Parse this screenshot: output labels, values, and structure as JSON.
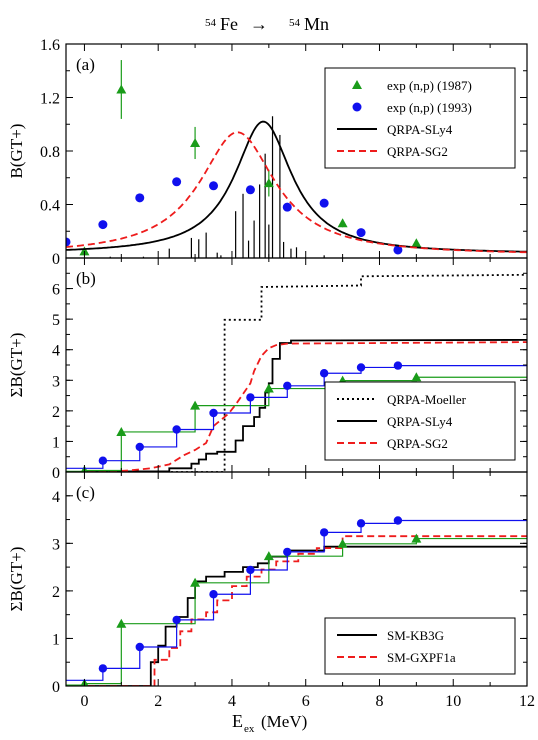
{
  "figure": {
    "title_mass_left": "54",
    "title_elem_left": "Fe",
    "title_arrow": "→",
    "title_mass_right": "54",
    "title_elem_right": "Mn",
    "xlabel_main": "E",
    "xlabel_sub": "ex",
    "xlabel_unit": "(MeV)"
  },
  "colors": {
    "exp87": "#1a9c1a",
    "exp93": "#1010ee",
    "sly4": "#000000",
    "sg2": "#ee1c1c",
    "moeller": "#000000",
    "kb3g": "#000000",
    "gxpf1a": "#ee1c1c"
  },
  "chart_data": [
    {
      "type": "scatter",
      "panel_label": "(a)",
      "ylabel": "B(GT+)",
      "xlim": [
        -0.5,
        12
      ],
      "ylim": [
        0,
        1.6
      ],
      "xticks": [
        0,
        2,
        4,
        6,
        8,
        10,
        12
      ],
      "yticks": [
        "0",
        "0.4",
        "0.8",
        "1.2",
        "1.6"
      ],
      "legend_position": "top-right",
      "series": [
        {
          "name": "exp (n,p)  (1987)",
          "marker": "triangle",
          "color": "#1a9c1a",
          "points": [
            {
              "x": 0,
              "y": 0.05,
              "err": 0.02
            },
            {
              "x": 1,
              "y": 1.26,
              "err": 0.22
            },
            {
              "x": 3,
              "y": 0.86,
              "err": 0.12
            },
            {
              "x": 5,
              "y": 0.56,
              "err": 0.1
            },
            {
              "x": 7,
              "y": 0.26,
              "err": 0.03
            },
            {
              "x": 9,
              "y": 0.11,
              "err": 0.0
            }
          ]
        },
        {
          "name": "exp (n,p)  (1993)",
          "marker": "circle",
          "color": "#1010ee",
          "points": [
            {
              "x": -0.5,
              "y": 0.12
            },
            {
              "x": 0.5,
              "y": 0.25
            },
            {
              "x": 1.5,
              "y": 0.45
            },
            {
              "x": 2.5,
              "y": 0.57
            },
            {
              "x": 3.5,
              "y": 0.54
            },
            {
              "x": 4.5,
              "y": 0.51
            },
            {
              "x": 5.5,
              "y": 0.38
            },
            {
              "x": 6.5,
              "y": 0.41
            },
            {
              "x": 7.5,
              "y": 0.19
            },
            {
              "x": 8.5,
              "y": 0.06
            }
          ]
        },
        {
          "name": "QRPA-SLy4",
          "style": "solid",
          "color": "#000000",
          "shape": "lorentz",
          "center": 4.85,
          "peak": 1.02,
          "width": 0.95,
          "base": 0.03
        },
        {
          "name": "QRPA-SG2",
          "style": "dashed",
          "color": "#ee1c1c",
          "shape": "lorentz",
          "center": 4.15,
          "peak": 0.94,
          "width": 1.25,
          "base": 0.02
        }
      ],
      "sticks": [
        {
          "x": 0.7,
          "y": 0.01
        },
        {
          "x": 1.6,
          "y": 0.01
        },
        {
          "x": 2.3,
          "y": 0.07
        },
        {
          "x": 2.9,
          "y": 0.15
        },
        {
          "x": 3.1,
          "y": 0.14
        },
        {
          "x": 3.3,
          "y": 0.19
        },
        {
          "x": 3.6,
          "y": 0.04
        },
        {
          "x": 3.7,
          "y": 0.02
        },
        {
          "x": 4.1,
          "y": 0.35
        },
        {
          "x": 4.3,
          "y": 0.48
        },
        {
          "x": 4.45,
          "y": 0.13
        },
        {
          "x": 4.6,
          "y": 0.28
        },
        {
          "x": 4.75,
          "y": 0.55
        },
        {
          "x": 4.9,
          "y": 0.78
        },
        {
          "x": 5.0,
          "y": 0.25
        },
        {
          "x": 5.1,
          "y": 1.06
        },
        {
          "x": 5.3,
          "y": 0.92
        },
        {
          "x": 5.4,
          "y": 0.12
        },
        {
          "x": 5.6,
          "y": 0.07
        },
        {
          "x": 5.75,
          "y": 0.08
        },
        {
          "x": 6.5,
          "y": 0.02
        }
      ]
    },
    {
      "type": "line",
      "panel_label": "(b)",
      "ylabel": "ΣB(GT+)",
      "xlim": [
        -0.5,
        12
      ],
      "ylim": [
        0,
        7
      ],
      "xticks": [
        0,
        2,
        4,
        6,
        8,
        10,
        12
      ],
      "yticks": [
        "0",
        "1",
        "2",
        "3",
        "4",
        "5",
        "6"
      ],
      "legend_position": "bottom-right",
      "series": [
        {
          "name": "QRPA-Moeller",
          "style": "dotted",
          "color": "#000000",
          "points": [
            [
              -0.5,
              0
            ],
            [
              3.8,
              0
            ],
            [
              3.8,
              4.98
            ],
            [
              4.8,
              4.98
            ],
            [
              4.8,
              6.05
            ],
            [
              7.5,
              6.1
            ],
            [
              7.5,
              6.4
            ],
            [
              12,
              6.45
            ]
          ]
        },
        {
          "name": "QRPA-SLy4",
          "style": "solid",
          "color": "#000000",
          "points": [
            [
              -0.5,
              0
            ],
            [
              0.7,
              0
            ],
            [
              0.7,
              0.02
            ],
            [
              2.3,
              0.02
            ],
            [
              2.3,
              0.12
            ],
            [
              2.9,
              0.12
            ],
            [
              2.9,
              0.27
            ],
            [
              3.1,
              0.27
            ],
            [
              3.1,
              0.41
            ],
            [
              3.3,
              0.41
            ],
            [
              3.3,
              0.6
            ],
            [
              3.6,
              0.6
            ],
            [
              3.6,
              0.66
            ],
            [
              4.1,
              0.66
            ],
            [
              4.1,
              1.03
            ],
            [
              4.3,
              1.03
            ],
            [
              4.3,
              1.5
            ],
            [
              4.6,
              1.5
            ],
            [
              4.6,
              1.8
            ],
            [
              4.75,
              1.8
            ],
            [
              4.75,
              2.1
            ],
            [
              4.9,
              2.1
            ],
            [
              4.9,
              2.6
            ],
            [
              5.0,
              2.6
            ],
            [
              5.0,
              2.9
            ],
            [
              5.1,
              2.9
            ],
            [
              5.1,
              3.7
            ],
            [
              5.3,
              3.7
            ],
            [
              5.3,
              4.22
            ],
            [
              5.6,
              4.22
            ],
            [
              5.6,
              4.3
            ],
            [
              12,
              4.32
            ]
          ]
        },
        {
          "name": "QRPA-SG2",
          "style": "dashed",
          "color": "#ee1c1c",
          "points": [
            [
              -0.5,
              0
            ],
            [
              0.5,
              0
            ],
            [
              1.2,
              0.05
            ],
            [
              1.8,
              0.12
            ],
            [
              2.3,
              0.25
            ],
            [
              2.7,
              0.55
            ],
            [
              3.0,
              0.72
            ],
            [
              3.3,
              0.95
            ],
            [
              3.5,
              1.5
            ],
            [
              3.7,
              1.7
            ],
            [
              3.9,
              1.9
            ],
            [
              4.1,
              2.2
            ],
            [
              4.3,
              2.55
            ],
            [
              4.5,
              2.9
            ],
            [
              4.6,
              3.3
            ],
            [
              4.8,
              3.8
            ],
            [
              5.0,
              4.05
            ],
            [
              5.2,
              4.15
            ],
            [
              5.5,
              4.2
            ],
            [
              12,
              4.25
            ]
          ]
        },
        {
          "name": "exp (n,p)  (1987)",
          "style": "step",
          "color": "#1a9c1a",
          "points": [
            [
              -0.5,
              0.02
            ],
            [
              0,
              0.05
            ],
            [
              1,
              1.31
            ],
            [
              3,
              2.17
            ],
            [
              5,
              2.73
            ],
            [
              7,
              2.99
            ],
            [
              9,
              3.1
            ],
            [
              12,
              3.1
            ]
          ]
        },
        {
          "name": "exp (n,p)  (1993)",
          "style": "step",
          "color": "#1010ee",
          "points": [
            [
              -0.5,
              0.12
            ],
            [
              0.5,
              0.37
            ],
            [
              1.5,
              0.82
            ],
            [
              2.5,
              1.39
            ],
            [
              3.5,
              1.93
            ],
            [
              4.5,
              2.44
            ],
            [
              5.5,
              2.82
            ],
            [
              6.5,
              3.23
            ],
            [
              7.5,
              3.42
            ],
            [
              8.5,
              3.48
            ],
            [
              12,
              3.48
            ]
          ]
        }
      ]
    },
    {
      "type": "line",
      "panel_label": "(c)",
      "ylabel": "ΣB(GT+)",
      "xlabel": "E_ex (MeV)",
      "xlim": [
        -0.5,
        12
      ],
      "ylim": [
        0,
        4.5
      ],
      "xticks": [
        0,
        2,
        4,
        6,
        8,
        10,
        12
      ],
      "yticks": [
        "0",
        "1",
        "2",
        "3",
        "4"
      ],
      "legend_position": "bottom-right",
      "series": [
        {
          "name": "SM-KB3G",
          "style": "solid",
          "color": "#000000",
          "points": [
            [
              -0.5,
              0
            ],
            [
              1.8,
              0
            ],
            [
              1.8,
              0.5
            ],
            [
              2.0,
              0.5
            ],
            [
              2.0,
              0.85
            ],
            [
              2.2,
              0.85
            ],
            [
              2.2,
              1.25
            ],
            [
              2.5,
              1.25
            ],
            [
              2.5,
              1.45
            ],
            [
              2.8,
              1.45
            ],
            [
              2.8,
              1.85
            ],
            [
              3.0,
              1.85
            ],
            [
              3.0,
              2.2
            ],
            [
              3.3,
              2.2
            ],
            [
              3.3,
              2.3
            ],
            [
              3.8,
              2.3
            ],
            [
              3.8,
              2.4
            ],
            [
              4.3,
              2.4
            ],
            [
              4.3,
              2.5
            ],
            [
              4.7,
              2.5
            ],
            [
              4.7,
              2.58
            ],
            [
              5.0,
              2.58
            ],
            [
              5.0,
              2.72
            ],
            [
              5.5,
              2.72
            ],
            [
              5.5,
              2.85
            ],
            [
              6.5,
              2.85
            ],
            [
              6.5,
              2.93
            ],
            [
              12,
              2.93
            ]
          ]
        },
        {
          "name": "SM-GXPF1a",
          "style": "dashed",
          "color": "#ee1c1c",
          "points": [
            [
              -0.5,
              0
            ],
            [
              1.9,
              0
            ],
            [
              1.9,
              0.55
            ],
            [
              2.3,
              0.55
            ],
            [
              2.3,
              0.8
            ],
            [
              2.6,
              0.8
            ],
            [
              2.6,
              1.15
            ],
            [
              2.9,
              1.15
            ],
            [
              2.9,
              1.4
            ],
            [
              3.3,
              1.4
            ],
            [
              3.3,
              1.55
            ],
            [
              3.6,
              1.55
            ],
            [
              3.6,
              1.8
            ],
            [
              4.0,
              1.8
            ],
            [
              4.0,
              2.1
            ],
            [
              4.4,
              2.1
            ],
            [
              4.4,
              2.3
            ],
            [
              4.8,
              2.3
            ],
            [
              4.8,
              2.45
            ],
            [
              5.2,
              2.45
            ],
            [
              5.2,
              2.62
            ],
            [
              5.8,
              2.62
            ],
            [
              5.8,
              2.78
            ],
            [
              6.3,
              2.78
            ],
            [
              6.3,
              2.9
            ],
            [
              7.0,
              2.9
            ],
            [
              7.0,
              3.15
            ],
            [
              12,
              3.15
            ]
          ]
        },
        {
          "name": "exp (n,p)  (1987)",
          "style": "step",
          "color": "#1a9c1a",
          "points": [
            [
              -0.5,
              0.02
            ],
            [
              0,
              0.05
            ],
            [
              1,
              1.31
            ],
            [
              3,
              2.17
            ],
            [
              5,
              2.73
            ],
            [
              7,
              2.99
            ],
            [
              9,
              3.1
            ],
            [
              12,
              3.1
            ]
          ]
        },
        {
          "name": "exp (n,p)  (1993)",
          "style": "step",
          "color": "#1010ee",
          "points": [
            [
              -0.5,
              0.12
            ],
            [
              0.5,
              0.37
            ],
            [
              1.5,
              0.82
            ],
            [
              2.5,
              1.39
            ],
            [
              3.5,
              1.93
            ],
            [
              4.5,
              2.44
            ],
            [
              5.5,
              2.82
            ],
            [
              6.5,
              3.23
            ],
            [
              7.5,
              3.42
            ],
            [
              8.5,
              3.48
            ],
            [
              12,
              3.48
            ]
          ]
        }
      ]
    }
  ]
}
